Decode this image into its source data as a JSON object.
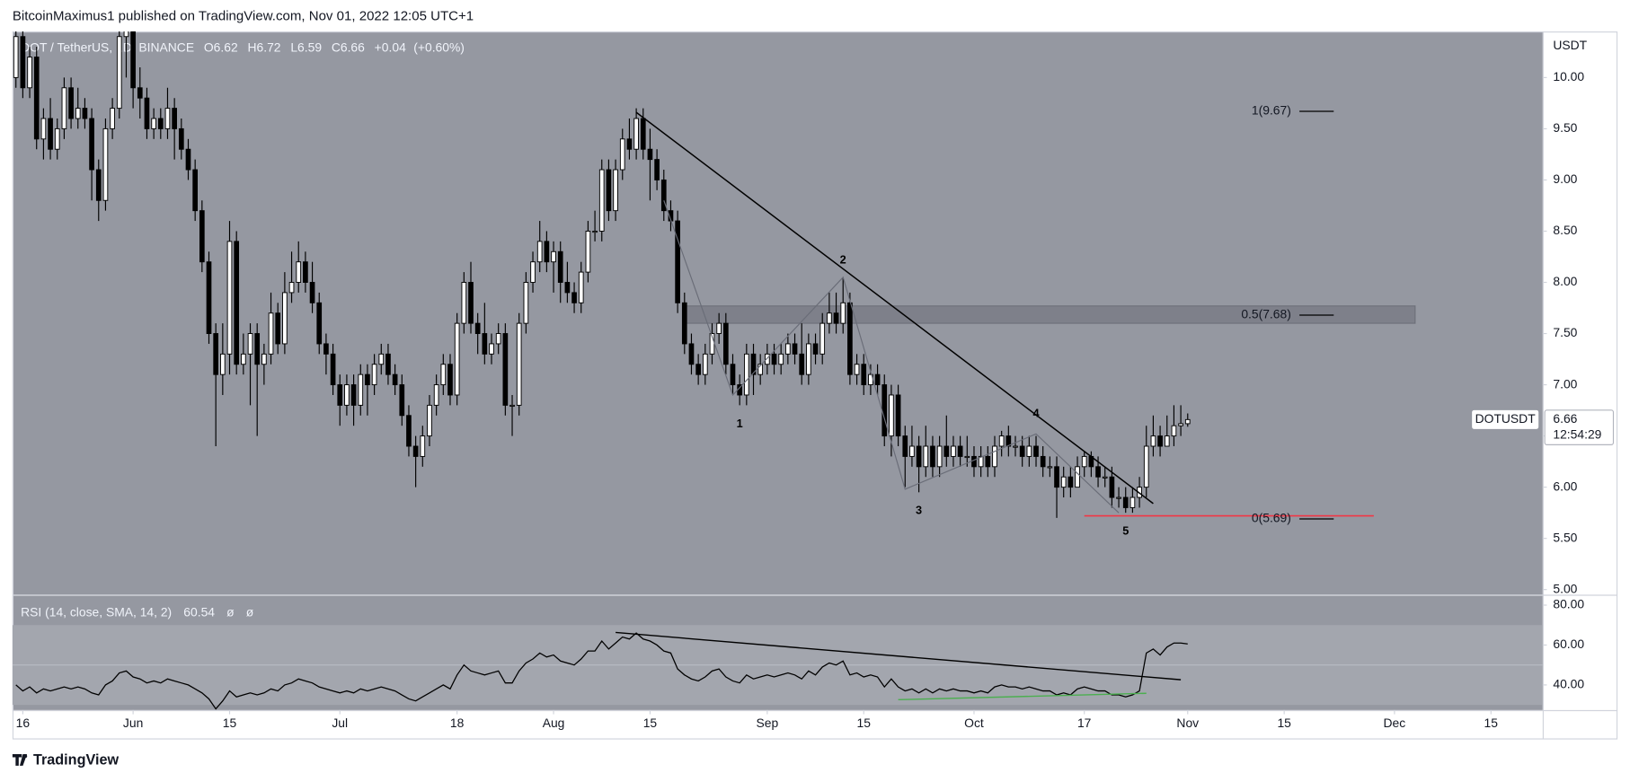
{
  "header": {
    "text": "BitcoinMaximus1 published on TradingView.com, Nov 01, 2022 12:05 UTC+1"
  },
  "footer": {
    "brand": "TradingView"
  },
  "chart_data": {
    "type": "candlestick",
    "title": "DOT / TetherUS, 1D, BINANCE",
    "ohlc_labels": [
      "O",
      "H",
      "L",
      "C"
    ],
    "change": "+0.04",
    "change_pct": "(+0.60%)",
    "y_axis_label": "USDT",
    "symbol_tag": "DOTUSDT",
    "countdown": "12:54:29",
    "up_color": "#ffffff",
    "down_color": "#000000",
    "grid": false,
    "x": [
      "2022-05-15",
      "2022-05-16",
      "2022-05-17",
      "2022-05-18",
      "2022-05-19",
      "2022-05-20",
      "2022-05-21",
      "2022-05-22",
      "2022-05-23",
      "2022-05-24",
      "2022-05-25",
      "2022-05-26",
      "2022-05-27",
      "2022-05-28",
      "2022-05-29",
      "2022-05-30",
      "2022-05-31",
      "2022-06-01",
      "2022-06-02",
      "2022-06-03",
      "2022-06-04",
      "2022-06-05",
      "2022-06-06",
      "2022-06-07",
      "2022-06-08",
      "2022-06-09",
      "2022-06-10",
      "2022-06-11",
      "2022-06-12",
      "2022-06-13",
      "2022-06-14",
      "2022-06-15",
      "2022-06-16",
      "2022-06-17",
      "2022-06-18",
      "2022-06-19",
      "2022-06-20",
      "2022-06-21",
      "2022-06-22",
      "2022-06-23",
      "2022-06-24",
      "2022-06-25",
      "2022-06-26",
      "2022-06-27",
      "2022-06-28",
      "2022-06-29",
      "2022-06-30",
      "2022-07-01",
      "2022-07-02",
      "2022-07-03",
      "2022-07-04",
      "2022-07-05",
      "2022-07-06",
      "2022-07-07",
      "2022-07-08",
      "2022-07-09",
      "2022-07-10",
      "2022-07-11",
      "2022-07-12",
      "2022-07-13",
      "2022-07-14",
      "2022-07-15",
      "2022-07-16",
      "2022-07-17",
      "2022-07-18",
      "2022-07-19",
      "2022-07-20",
      "2022-07-21",
      "2022-07-22",
      "2022-07-23",
      "2022-07-24",
      "2022-07-25",
      "2022-07-26",
      "2022-07-27",
      "2022-07-28",
      "2022-07-29",
      "2022-07-30",
      "2022-07-31",
      "2022-08-01",
      "2022-08-02",
      "2022-08-03",
      "2022-08-04",
      "2022-08-05",
      "2022-08-06",
      "2022-08-07",
      "2022-08-08",
      "2022-08-09",
      "2022-08-10",
      "2022-08-11",
      "2022-08-12",
      "2022-08-13",
      "2022-08-14",
      "2022-08-15",
      "2022-08-16",
      "2022-08-17",
      "2022-08-18",
      "2022-08-19",
      "2022-08-20",
      "2022-08-21",
      "2022-08-22",
      "2022-08-23",
      "2022-08-24",
      "2022-08-25",
      "2022-08-26",
      "2022-08-27",
      "2022-08-28",
      "2022-08-29",
      "2022-08-30",
      "2022-08-31",
      "2022-09-01",
      "2022-09-02",
      "2022-09-03",
      "2022-09-04",
      "2022-09-05",
      "2022-09-06",
      "2022-09-07",
      "2022-09-08",
      "2022-09-09",
      "2022-09-10",
      "2022-09-11",
      "2022-09-12",
      "2022-09-13",
      "2022-09-14",
      "2022-09-15",
      "2022-09-16",
      "2022-09-17",
      "2022-09-18",
      "2022-09-19",
      "2022-09-20",
      "2022-09-21",
      "2022-09-22",
      "2022-09-23",
      "2022-09-24",
      "2022-09-25",
      "2022-09-26",
      "2022-09-27",
      "2022-09-28",
      "2022-09-29",
      "2022-09-30",
      "2022-10-01",
      "2022-10-02",
      "2022-10-03",
      "2022-10-04",
      "2022-10-05",
      "2022-10-06",
      "2022-10-07",
      "2022-10-08",
      "2022-10-09",
      "2022-10-10",
      "2022-10-11",
      "2022-10-12",
      "2022-10-13",
      "2022-10-14",
      "2022-10-15",
      "2022-10-16",
      "2022-10-17",
      "2022-10-18",
      "2022-10-19",
      "2022-10-20",
      "2022-10-21",
      "2022-10-22",
      "2022-10-23",
      "2022-10-24",
      "2022-10-25",
      "2022-10-26",
      "2022-10-27",
      "2022-10-28",
      "2022-10-29",
      "2022-10-30",
      "2022-10-31",
      "2022-11-01"
    ],
    "open": [
      10.0,
      10.4,
      9.9,
      10.2,
      9.4,
      9.6,
      9.3,
      9.5,
      9.9,
      9.6,
      9.7,
      9.6,
      9.1,
      8.8,
      9.5,
      9.7,
      10.4,
      10.5,
      9.9,
      9.8,
      9.5,
      9.6,
      9.5,
      9.7,
      9.5,
      9.3,
      9.1,
      8.7,
      8.2,
      7.5,
      7.1,
      7.3,
      8.4,
      7.2,
      7.3,
      7.5,
      7.2,
      7.3,
      7.7,
      7.4,
      7.9,
      8.0,
      8.2,
      8.0,
      7.8,
      7.4,
      7.3,
      7.0,
      6.8,
      7.0,
      6.8,
      7.1,
      7.0,
      7.2,
      7.3,
      7.1,
      7.0,
      6.7,
      6.4,
      6.3,
      6.5,
      6.8,
      7.0,
      7.2,
      6.9,
      7.6,
      8.0,
      7.6,
      7.5,
      7.3,
      7.4,
      7.5,
      6.8,
      6.8,
      7.6,
      8.0,
      8.2,
      8.4,
      8.2,
      8.3,
      8.0,
      7.9,
      7.8,
      8.1,
      8.5,
      8.5,
      9.1,
      8.7,
      9.1,
      9.4,
      9.3,
      9.6,
      9.3,
      9.2,
      9.0,
      8.7,
      8.6,
      7.8,
      7.4,
      7.2,
      7.1,
      7.3,
      7.5,
      7.6,
      7.2,
      7.0,
      6.9,
      7.3,
      7.1,
      7.2,
      7.3,
      7.2,
      7.3,
      7.4,
      7.3,
      7.1,
      7.4,
      7.3,
      7.6,
      7.7,
      7.6,
      7.8,
      7.1,
      7.2,
      7.0,
      7.1,
      7.0,
      6.5,
      6.9,
      6.5,
      6.3,
      6.4,
      6.2,
      6.4,
      6.2,
      6.4,
      6.3,
      6.4,
      6.3,
      6.3,
      6.2,
      6.3,
      6.2,
      6.4,
      6.5,
      6.4,
      6.4,
      6.3,
      6.4,
      6.3,
      6.2,
      6.2,
      6.0,
      6.1,
      6.0,
      6.2,
      6.3,
      6.2,
      6.1,
      6.1,
      5.9,
      5.9,
      5.8,
      5.9,
      6.0,
      6.4,
      6.5,
      6.4,
      6.5,
      6.6,
      6.62
    ],
    "high": [
      10.5,
      10.5,
      10.3,
      10.3,
      9.7,
      9.8,
      9.6,
      10.0,
      10.0,
      9.9,
      9.8,
      9.7,
      9.2,
      9.6,
      9.8,
      10.5,
      10.7,
      10.6,
      10.1,
      9.9,
      9.7,
      9.7,
      9.9,
      9.8,
      9.6,
      9.4,
      9.2,
      8.8,
      8.3,
      7.6,
      7.6,
      8.6,
      8.5,
      7.5,
      7.6,
      7.6,
      7.4,
      7.9,
      7.8,
      8.1,
      8.3,
      8.4,
      8.3,
      8.2,
      7.9,
      7.5,
      7.4,
      7.1,
      7.1,
      7.1,
      7.2,
      7.2,
      7.3,
      7.4,
      7.4,
      7.2,
      7.1,
      6.8,
      6.5,
      6.6,
      6.9,
      7.1,
      7.3,
      7.3,
      7.7,
      8.1,
      8.2,
      7.7,
      7.8,
      7.5,
      7.6,
      7.6,
      6.9,
      7.7,
      8.1,
      8.3,
      8.6,
      8.5,
      8.4,
      8.4,
      8.2,
      8.0,
      8.2,
      8.6,
      8.7,
      9.2,
      9.2,
      9.2,
      9.5,
      9.6,
      9.7,
      9.7,
      9.5,
      9.3,
      9.1,
      8.8,
      8.7,
      7.9,
      7.5,
      7.3,
      7.4,
      7.6,
      7.7,
      7.7,
      7.3,
      7.1,
      7.4,
      7.4,
      7.3,
      7.4,
      7.4,
      7.4,
      7.5,
      7.5,
      7.6,
      7.5,
      7.5,
      7.7,
      7.9,
      7.9,
      8.05,
      7.9,
      7.3,
      7.3,
      7.2,
      7.2,
      7.1,
      7.0,
      7.0,
      6.6,
      6.6,
      6.5,
      6.6,
      6.5,
      6.5,
      6.7,
      6.5,
      6.5,
      6.5,
      6.4,
      6.4,
      6.4,
      6.5,
      6.55,
      6.6,
      6.5,
      6.5,
      6.5,
      6.5,
      6.4,
      6.3,
      6.3,
      6.2,
      6.2,
      6.3,
      6.35,
      6.35,
      6.3,
      6.2,
      6.2,
      6.0,
      6.0,
      6.0,
      6.1,
      6.6,
      6.7,
      6.6,
      6.7,
      6.8,
      6.8,
      6.72
    ],
    "low": [
      9.9,
      9.8,
      9.8,
      9.3,
      9.2,
      9.2,
      9.2,
      9.4,
      9.5,
      9.5,
      9.5,
      8.8,
      8.6,
      8.7,
      9.4,
      9.6,
      10.0,
      9.7,
      9.6,
      9.4,
      9.4,
      9.4,
      9.4,
      9.2,
      9.2,
      9.0,
      8.6,
      8.1,
      7.4,
      6.4,
      6.9,
      7.1,
      7.1,
      7.1,
      6.8,
      6.5,
      7.0,
      7.2,
      7.3,
      7.3,
      7.8,
      7.9,
      7.9,
      7.7,
      7.3,
      7.1,
      6.9,
      6.6,
      6.7,
      6.6,
      6.7,
      6.7,
      6.9,
      7.1,
      7.0,
      6.9,
      6.6,
      6.3,
      6.0,
      6.2,
      6.4,
      6.7,
      6.9,
      6.8,
      6.8,
      7.5,
      7.5,
      7.3,
      7.2,
      7.2,
      7.3,
      6.7,
      6.5,
      6.7,
      7.5,
      7.9,
      8.1,
      8.1,
      7.9,
      7.8,
      7.8,
      7.7,
      7.7,
      8.0,
      8.4,
      8.4,
      8.6,
      8.6,
      9.0,
      9.2,
      9.2,
      9.2,
      8.8,
      8.9,
      8.6,
      8.5,
      7.7,
      7.3,
      7.1,
      7.0,
      7.0,
      7.2,
      7.4,
      7.1,
      6.9,
      6.8,
      6.8,
      6.9,
      7.0,
      7.1,
      7.1,
      7.1,
      7.2,
      7.2,
      7.0,
      7.0,
      7.2,
      7.2,
      7.5,
      7.5,
      7.5,
      7.0,
      7.0,
      6.9,
      6.9,
      6.9,
      6.4,
      6.3,
      6.4,
      6.0,
      6.2,
      5.95,
      6.1,
      6.1,
      6.1,
      6.2,
      6.2,
      6.2,
      6.2,
      6.1,
      6.1,
      6.1,
      6.1,
      6.3,
      6.3,
      6.3,
      6.2,
      6.2,
      6.2,
      6.1,
      6.1,
      5.7,
      5.9,
      5.9,
      6.0,
      6.1,
      6.1,
      6.0,
      6.0,
      5.8,
      5.8,
      5.75,
      5.75,
      5.8,
      5.9,
      6.3,
      6.3,
      6.4,
      6.4,
      6.5,
      6.59
    ],
    "close": [
      10.4,
      9.9,
      10.2,
      9.4,
      9.6,
      9.3,
      9.5,
      9.9,
      9.6,
      9.7,
      9.6,
      9.1,
      8.8,
      9.5,
      9.7,
      10.4,
      10.5,
      9.9,
      9.8,
      9.5,
      9.6,
      9.5,
      9.7,
      9.5,
      9.3,
      9.1,
      8.7,
      8.2,
      7.5,
      7.1,
      7.3,
      8.4,
      7.2,
      7.3,
      7.5,
      7.2,
      7.3,
      7.7,
      7.4,
      7.9,
      8.0,
      8.2,
      8.0,
      7.8,
      7.4,
      7.3,
      7.0,
      6.8,
      7.0,
      6.8,
      7.1,
      7.0,
      7.2,
      7.3,
      7.1,
      7.0,
      6.7,
      6.4,
      6.3,
      6.5,
      6.8,
      7.0,
      7.2,
      6.9,
      7.6,
      8.0,
      7.6,
      7.5,
      7.3,
      7.4,
      7.5,
      6.8,
      6.8,
      7.6,
      8.0,
      8.2,
      8.4,
      8.2,
      8.3,
      8.0,
      7.9,
      7.8,
      8.1,
      8.5,
      8.5,
      9.1,
      8.7,
      9.1,
      9.4,
      9.3,
      9.6,
      9.3,
      9.2,
      9.0,
      8.7,
      8.6,
      7.8,
      7.4,
      7.2,
      7.1,
      7.3,
      7.5,
      7.6,
      7.2,
      7.0,
      6.9,
      7.3,
      7.1,
      7.2,
      7.3,
      7.2,
      7.3,
      7.4,
      7.3,
      7.1,
      7.4,
      7.3,
      7.6,
      7.7,
      7.6,
      7.8,
      7.1,
      7.2,
      7.0,
      7.1,
      7.0,
      6.5,
      6.9,
      6.5,
      6.3,
      6.4,
      6.2,
      6.4,
      6.2,
      6.4,
      6.3,
      6.4,
      6.3,
      6.3,
      6.2,
      6.3,
      6.2,
      6.4,
      6.5,
      6.4,
      6.4,
      6.3,
      6.4,
      6.3,
      6.2,
      6.2,
      6.0,
      6.1,
      6.0,
      6.2,
      6.3,
      6.2,
      6.1,
      6.1,
      5.9,
      5.9,
      5.8,
      5.9,
      6.0,
      6.4,
      6.5,
      6.4,
      6.5,
      6.6,
      6.62,
      6.66
    ],
    "xlim": [
      "2022-05-14T12:00:00Z",
      "2022-12-22T12:00:00Z"
    ],
    "xticks": [
      {
        "value": "2022-05-16",
        "label": "16"
      },
      {
        "value": "2022-06-01",
        "label": "Jun"
      },
      {
        "value": "2022-06-15",
        "label": "15"
      },
      {
        "value": "2022-07-01",
        "label": "Jul"
      },
      {
        "value": "2022-07-18",
        "label": "18"
      },
      {
        "value": "2022-08-01",
        "label": "Aug"
      },
      {
        "value": "2022-08-15",
        "label": "15"
      },
      {
        "value": "2022-09-01",
        "label": "Sep"
      },
      {
        "value": "2022-09-15",
        "label": "15"
      },
      {
        "value": "2022-10-01",
        "label": "Oct"
      },
      {
        "value": "2022-10-17",
        "label": "17"
      },
      {
        "value": "2022-11-01",
        "label": "Nov"
      },
      {
        "value": "2022-11-15",
        "label": "15"
      },
      {
        "value": "2022-12-01",
        "label": "Dec"
      },
      {
        "value": "2022-12-15",
        "label": "15"
      }
    ],
    "ylim": [
      4.95,
      10.45
    ],
    "yticks": [
      {
        "value": 5,
        "label": "5.00"
      },
      {
        "value": 5.5,
        "label": "5.50"
      },
      {
        "value": 6,
        "label": "6.00"
      },
      {
        "value": 6.5,
        "label": "6.50"
      },
      {
        "value": 7,
        "label": "7.00"
      },
      {
        "value": 7.5,
        "label": "7.50"
      },
      {
        "value": 8,
        "label": "8.00"
      },
      {
        "value": 8.5,
        "label": "8.50"
      },
      {
        "value": 9,
        "label": "9.00"
      },
      {
        "value": 9.5,
        "label": "9.50"
      },
      {
        "value": 10,
        "label": "10.00"
      }
    ],
    "trendlines": [
      {
        "color": "#000000",
        "points": [
          [
            "2022-08-13",
            9.66
          ],
          [
            "2022-10-27",
            5.84
          ]
        ]
      }
    ],
    "wave_line": {
      "color": "#6a6d78",
      "points": [
        [
          "2022-08-17",
          8.8
        ],
        [
          "2022-08-27",
          6.9
        ],
        [
          "2022-09-12",
          8.05
        ],
        [
          "2022-09-21",
          5.98
        ],
        [
          "2022-10-10",
          6.52
        ],
        [
          "2022-10-22",
          5.75
        ]
      ]
    },
    "waves": [
      {
        "label": "1",
        "x": "2022-08-28",
        "value": 6.8
      },
      {
        "label": "2",
        "x": "2022-09-12",
        "value": 8.05
      },
      {
        "label": "3",
        "x": "2022-09-23",
        "value": 5.95
      },
      {
        "label": "4",
        "x": "2022-10-10",
        "value": 6.55
      },
      {
        "label": "5",
        "x": "2022-10-23",
        "value": 5.75
      }
    ],
    "fib_levels": [
      {
        "label": "1(9.67)",
        "value": 9.67
      },
      {
        "label": "0.5(7.68)",
        "value": 7.68
      },
      {
        "label": "0(5.69)",
        "value": 5.69
      }
    ],
    "zone": {
      "from": 7.6,
      "to": 7.77,
      "start": "2022-08-20",
      "end": "2022-12-04",
      "color": "#6b6e78"
    },
    "support_line": {
      "value": 5.72,
      "start": "2022-10-17",
      "end": "2022-11-28",
      "color": "#f23645"
    },
    "rsi": {
      "label": "RSI (14, close, SMA, 14, 2)",
      "extras": [
        "ø",
        "ø"
      ],
      "color": "#000000",
      "ylim": [
        27.4,
        84.7
      ],
      "yticks": [
        {
          "value": 80,
          "label": "80.00"
        },
        {
          "value": 60,
          "label": "60.00"
        },
        {
          "value": 40,
          "label": "40.00"
        }
      ],
      "band": [
        30,
        70
      ],
      "midline": 50,
      "values": [
        40,
        37,
        39,
        36,
        38,
        37,
        38,
        39,
        38,
        39,
        38,
        36,
        35,
        40,
        42,
        46,
        47,
        44,
        43,
        41,
        42,
        41,
        43,
        42,
        41,
        40,
        38,
        36,
        33,
        28,
        32,
        37,
        34,
        35,
        36,
        35,
        36,
        38,
        37,
        40,
        41,
        43,
        42,
        41,
        39,
        38,
        37,
        36,
        37,
        36,
        38,
        37,
        38,
        39,
        38,
        37,
        35,
        33,
        32,
        34,
        36,
        38,
        40,
        38,
        45,
        50,
        47,
        46,
        45,
        46,
        47,
        41,
        41,
        47,
        51,
        53,
        56,
        54,
        55,
        52,
        51,
        50,
        53,
        57,
        57,
        62,
        58,
        61,
        64,
        63,
        66,
        63,
        62,
        60,
        57,
        56,
        48,
        45,
        43,
        42,
        44,
        47,
        48,
        44,
        42,
        41,
        45,
        43,
        44,
        45,
        44,
        45,
        46,
        45,
        43,
        47,
        45,
        49,
        51,
        50,
        52,
        45,
        46,
        44,
        45,
        44,
        39,
        43,
        39,
        37,
        38,
        36,
        38,
        36,
        38,
        37,
        38,
        37,
        37,
        36,
        37,
        36,
        39,
        40,
        39,
        39,
        38,
        39,
        38,
        37,
        37,
        35,
        36,
        35,
        38,
        39,
        38,
        37,
        37,
        35,
        35,
        34,
        35,
        37,
        56,
        58,
        55,
        59,
        61,
        61,
        60.54
      ],
      "trendlines": [
        {
          "color": "#000000",
          "points": [
            [
              "2022-08-10",
              66.3
            ],
            [
              "2022-10-31",
              42.6
            ]
          ]
        },
        {
          "color": "#4caf50",
          "points": [
            [
              "2022-09-20",
              32.6
            ],
            [
              "2022-10-26",
              35.8
            ]
          ]
        }
      ]
    }
  }
}
